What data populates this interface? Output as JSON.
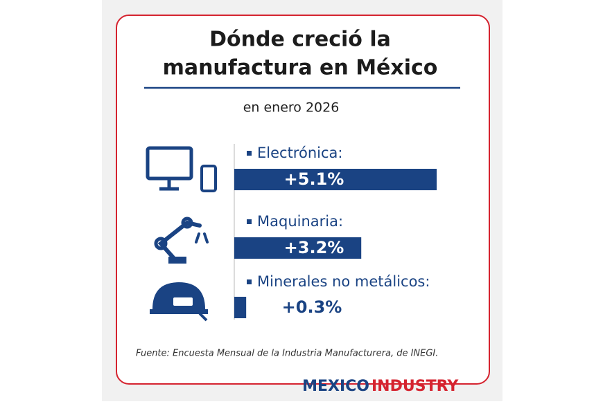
{
  "chart_data": {
    "type": "bar",
    "orientation": "horizontal",
    "title": [
      "Dónde creció la",
      "manufactura en México"
    ],
    "subtitle": "en enero 2026",
    "categories": [
      "Electrónica:",
      "Maquinaria:",
      "Minerales no metálicos:"
    ],
    "values": [
      5.1,
      3.2,
      0.3
    ],
    "value_labels": [
      "+5.1%",
      "+3.2%",
      "+0.3%"
    ],
    "color": "#1a4383",
    "source": "Fuente: Encuesta Mensual de la Industria Manufacturera, de INEGI.",
    "logo": [
      "MEXICO",
      "INDUSTRY"
    ]
  }
}
